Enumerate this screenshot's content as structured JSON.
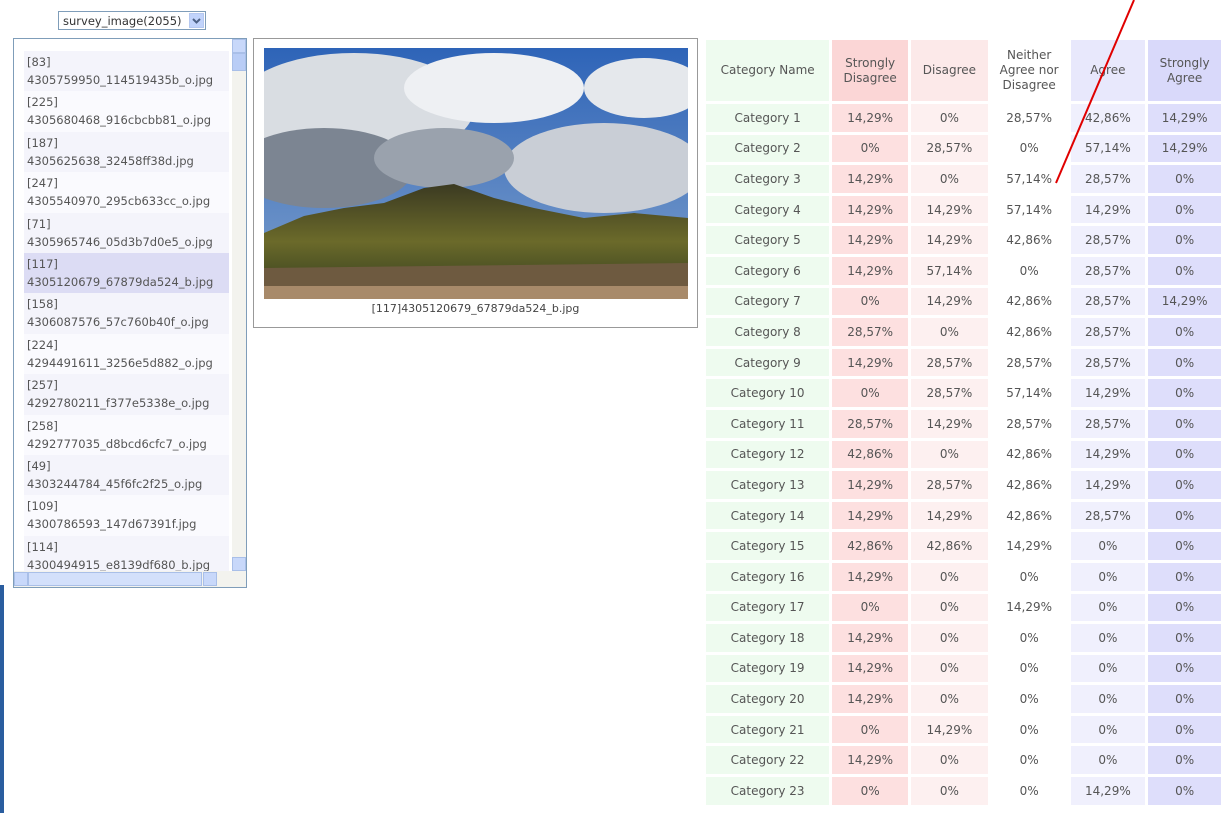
{
  "dropdown": {
    "label": "survey_image(2055)"
  },
  "image_list": {
    "items": [
      {
        "id": "[83]",
        "file": "4305759950_114519435b_o.jpg"
      },
      {
        "id": "[225]",
        "file": "4305680468_916cbcbb81_o.jpg"
      },
      {
        "id": "[187]",
        "file": "4305625638_32458ff38d.jpg"
      },
      {
        "id": "[247]",
        "file": "4305540970_295cb633cc_o.jpg"
      },
      {
        "id": "[71]",
        "file": "4305965746_05d3b7d0e5_o.jpg"
      },
      {
        "id": "[117]",
        "file": "4305120679_67879da524_b.jpg",
        "selected": true
      },
      {
        "id": "[158]",
        "file": "4306087576_57c760b40f_o.jpg"
      },
      {
        "id": "[224]",
        "file": "4294491611_3256e5d882_o.jpg"
      },
      {
        "id": "[257]",
        "file": "4292780211_f377e5338e_o.jpg"
      },
      {
        "id": "[258]",
        "file": "4292777035_d8bcd6cfc7_o.jpg"
      },
      {
        "id": "[49]",
        "file": "4303244784_45f6fc2f25_o.jpg"
      },
      {
        "id": "[109]",
        "file": "4300786593_147d67391f.jpg"
      },
      {
        "id": "[114]",
        "file": "4300494915_e8139df680_b.jpg"
      }
    ]
  },
  "preview": {
    "caption": "[117]4305120679_67879da524_b.jpg"
  },
  "table": {
    "header": [
      "Category Name",
      "Strongly Disagree",
      "Disagree",
      "Neither Agree nor Disagree",
      "Agree",
      "Strongly Agree"
    ],
    "rows": [
      [
        "Category 1",
        "14,29%",
        "0%",
        "28,57%",
        "42,86%",
        "14,29%"
      ],
      [
        "Category 2",
        "0%",
        "28,57%",
        "0%",
        "57,14%",
        "14,29%"
      ],
      [
        "Category 3",
        "14,29%",
        "0%",
        "57,14%",
        "28,57%",
        "0%"
      ],
      [
        "Category 4",
        "14,29%",
        "14,29%",
        "57,14%",
        "14,29%",
        "0%"
      ],
      [
        "Category 5",
        "14,29%",
        "14,29%",
        "42,86%",
        "28,57%",
        "0%"
      ],
      [
        "Category 6",
        "14,29%",
        "57,14%",
        "0%",
        "28,57%",
        "0%"
      ],
      [
        "Category 7",
        "0%",
        "14,29%",
        "42,86%",
        "28,57%",
        "14,29%"
      ],
      [
        "Category 8",
        "28,57%",
        "0%",
        "42,86%",
        "28,57%",
        "0%"
      ],
      [
        "Category 9",
        "14,29%",
        "28,57%",
        "28,57%",
        "28,57%",
        "0%"
      ],
      [
        "Category 10",
        "0%",
        "28,57%",
        "57,14%",
        "14,29%",
        "0%"
      ],
      [
        "Category 11",
        "28,57%",
        "14,29%",
        "28,57%",
        "28,57%",
        "0%"
      ],
      [
        "Category 12",
        "42,86%",
        "0%",
        "42,86%",
        "14,29%",
        "0%"
      ],
      [
        "Category 13",
        "14,29%",
        "28,57%",
        "42,86%",
        "14,29%",
        "0%"
      ],
      [
        "Category 14",
        "14,29%",
        "14,29%",
        "42,86%",
        "28,57%",
        "0%"
      ],
      [
        "Category 15",
        "42,86%",
        "42,86%",
        "14,29%",
        "0%",
        "0%"
      ],
      [
        "Category 16",
        "14,29%",
        "0%",
        "0%",
        "0%",
        "0%"
      ],
      [
        "Category 17",
        "0%",
        "0%",
        "14,29%",
        "0%",
        "0%"
      ],
      [
        "Category 18",
        "14,29%",
        "0%",
        "0%",
        "0%",
        "0%"
      ],
      [
        "Category 19",
        "14,29%",
        "0%",
        "0%",
        "0%",
        "0%"
      ],
      [
        "Category 20",
        "14,29%",
        "0%",
        "0%",
        "0%",
        "0%"
      ],
      [
        "Category 21",
        "0%",
        "14,29%",
        "0%",
        "0%",
        "0%"
      ],
      [
        "Category 22",
        "14,29%",
        "0%",
        "0%",
        "0%",
        "0%"
      ],
      [
        "Category 23",
        "0%",
        "0%",
        "0%",
        "14,29%",
        "0%"
      ]
    ]
  }
}
